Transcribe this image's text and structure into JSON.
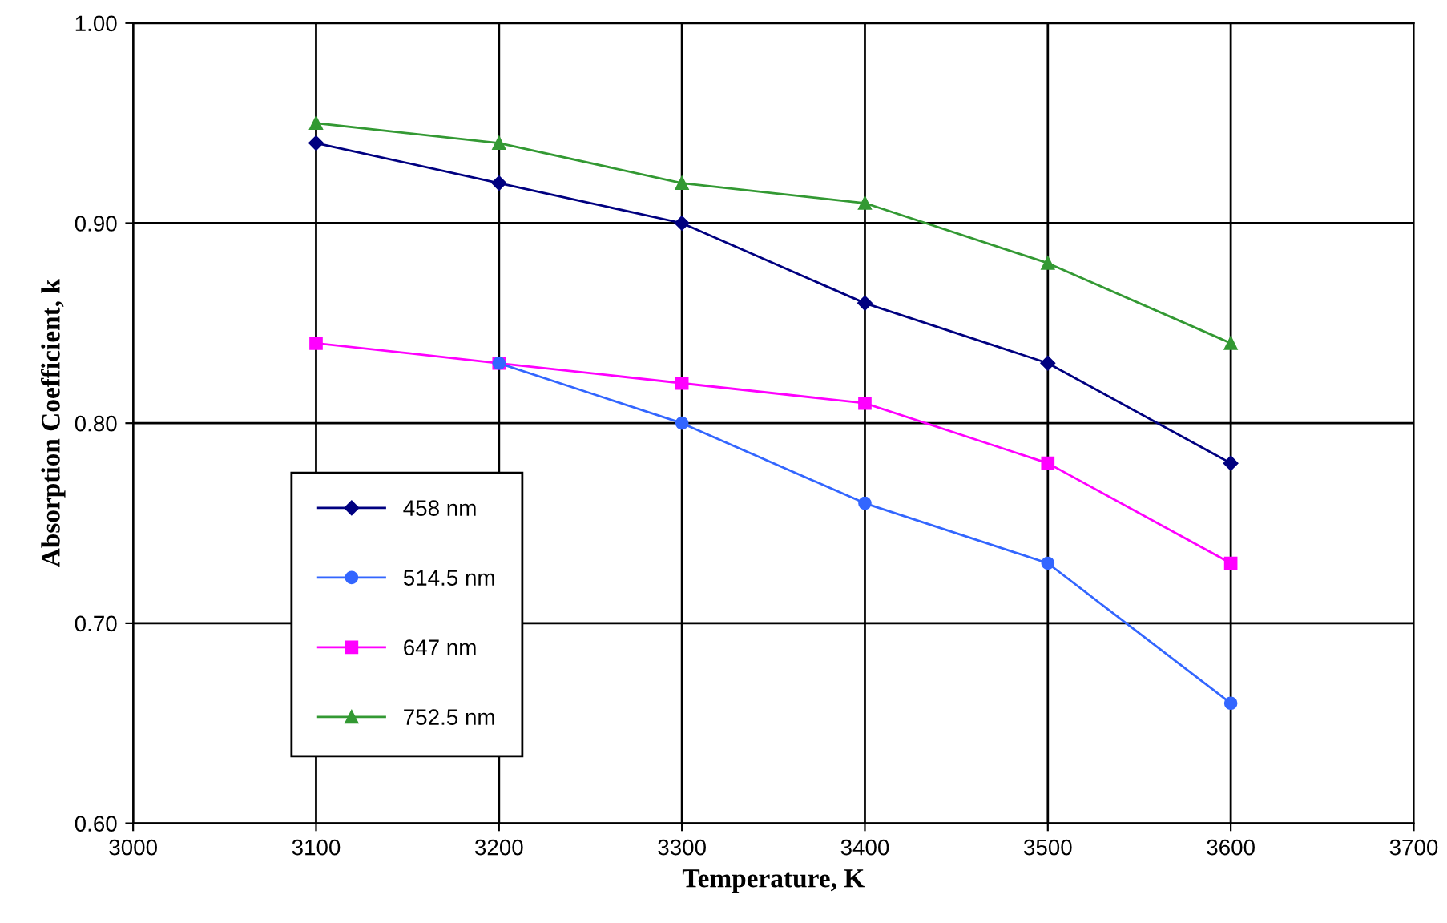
{
  "chart_data": {
    "type": "line",
    "xlabel": "Temperature, K",
    "ylabel": "Absorption Coefficient, k",
    "x": [
      3100,
      3200,
      3300,
      3400,
      3500,
      3600
    ],
    "series": [
      {
        "name": "458 nm",
        "color": "#000080",
        "marker": "diamond",
        "values": [
          0.94,
          0.92,
          0.9,
          0.86,
          0.83,
          0.78
        ]
      },
      {
        "name": "514.5 nm",
        "color": "#3366ff",
        "marker": "circle",
        "values": [
          null,
          0.83,
          0.8,
          0.76,
          0.73,
          0.66
        ]
      },
      {
        "name": "647 nm",
        "color": "#ff00ff",
        "marker": "square",
        "values": [
          0.84,
          0.83,
          0.82,
          0.81,
          0.78,
          0.73
        ]
      },
      {
        "name": "752.5 nm",
        "color": "#339933",
        "marker": "triangle",
        "values": [
          0.95,
          0.94,
          0.92,
          0.91,
          0.88,
          0.84
        ]
      }
    ],
    "xlim": [
      3000,
      3700
    ],
    "xticks": [
      3000,
      3100,
      3200,
      3300,
      3400,
      3500,
      3600,
      3700
    ],
    "ylim": [
      0.6,
      1.0
    ],
    "yticks": [
      {
        "value": 0.6,
        "label": "0.60"
      },
      {
        "value": 0.7,
        "label": "0.70"
      },
      {
        "value": 0.8,
        "label": "0.80"
      },
      {
        "value": 0.9,
        "label": "0.90"
      },
      {
        "value": 1.0,
        "label": "1.00"
      }
    ],
    "grid": true,
    "legend": "bottom left",
    "line_style": "solid"
  }
}
